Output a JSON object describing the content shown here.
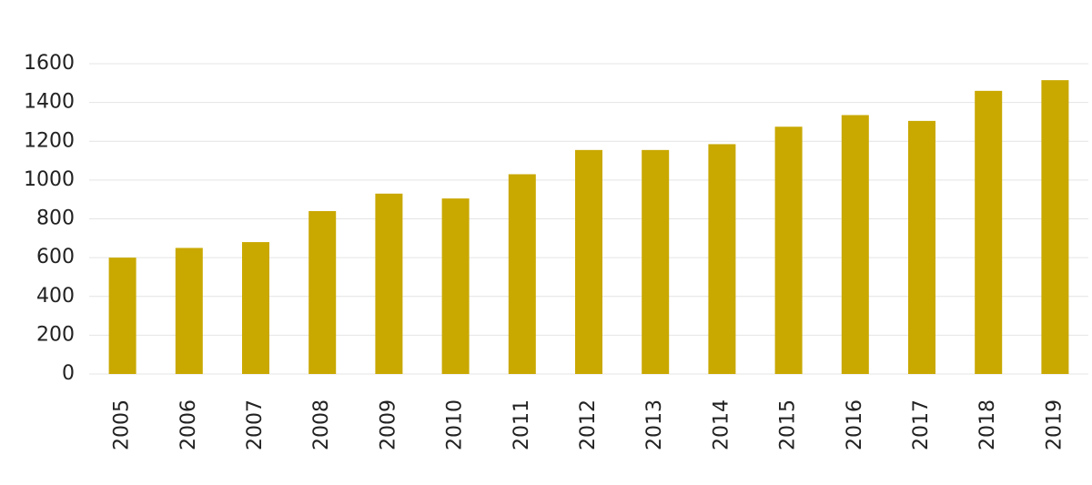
{
  "chart_data": {
    "type": "bar",
    "categories": [
      "2005",
      "2006",
      "2007",
      "2008",
      "2009",
      "2010",
      "2011",
      "2012",
      "2013",
      "2014",
      "2015",
      "2016",
      "2017",
      "2018",
      "2019"
    ],
    "values": [
      600,
      650,
      680,
      840,
      930,
      905,
      1030,
      1155,
      1155,
      1185,
      1275,
      1335,
      1305,
      1460,
      1515
    ],
    "color": "#c9a800",
    "ylim": [
      0,
      1600
    ],
    "yticks": [
      0,
      200,
      400,
      600,
      800,
      1000,
      1200,
      1400,
      1600
    ],
    "grid": true
  }
}
